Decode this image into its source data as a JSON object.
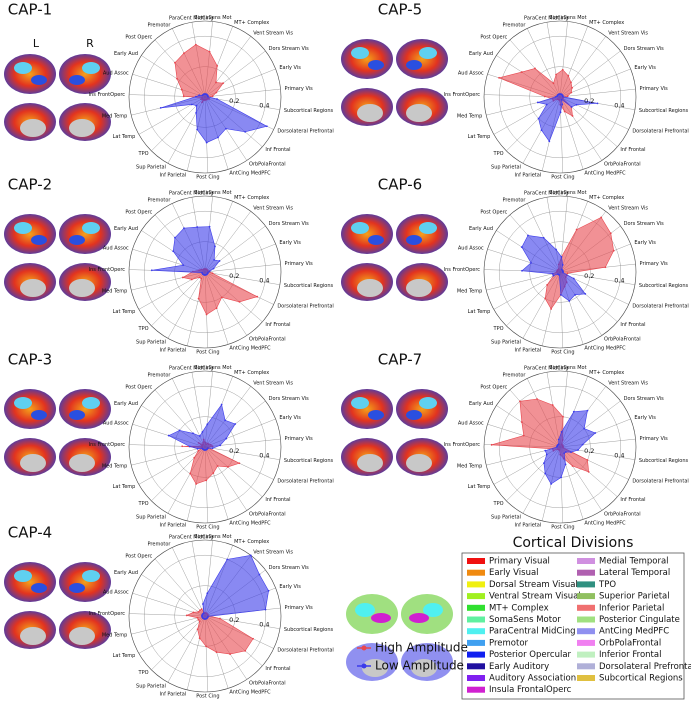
{
  "chart_data": [
    {
      "type": "radar",
      "title": "CAP-1",
      "categories": [
        "Primary Vis",
        "Early Vis",
        "Dors Stream Vis",
        "Vent Stream Vis",
        "MT+ Complex",
        "SomaSens Mot",
        "ParaCent MidCing",
        "Premotor",
        "Post Operc",
        "Early Aud",
        "Aud Assoc",
        "Ins FrontOperc",
        "Med Temp",
        "Lat Temp",
        "TPO",
        "Sup Parietal",
        "Inf Parietal",
        "Post Cing",
        "AntCing MedPFC",
        "OrbPolaFrontal",
        "Inf Frontal",
        "Dorsolateral Prefrontal",
        "Subcortical Regions"
      ],
      "series": [
        {
          "name": "High Amplitude",
          "color": "#e8474f",
          "values": [
            0.05,
            0.08,
            0.15,
            0.12,
            0.22,
            0.3,
            0.35,
            0.32,
            0.3,
            0.22,
            0.16,
            0.14,
            0.02,
            0.03,
            0.02,
            0.04,
            0.02,
            0.02,
            0.02,
            0.02,
            0.02,
            0.03,
            0.02
          ]
        },
        {
          "name": "Low Amplitude",
          "color": "#3b3bea",
          "values": [
            0.02,
            0.02,
            0.02,
            0.02,
            0.02,
            0.02,
            0.02,
            0.02,
            0.02,
            0.02,
            0.04,
            0.06,
            0.3,
            0.1,
            0.08,
            0.12,
            0.22,
            0.3,
            0.28,
            0.25,
            0.35,
            0.45,
            0.08
          ]
        }
      ],
      "rlim": [
        0,
        0.5
      ],
      "rticks": [
        0.2,
        0.4
      ]
    },
    {
      "type": "radar",
      "title": "CAP-2",
      "categories": [
        "Primary Vis",
        "Early Vis",
        "Dors Stream Vis",
        "Vent Stream Vis",
        "MT+ Complex",
        "SomaSens Mot",
        "ParaCent MidCing",
        "Premotor",
        "Post Operc",
        "Early Aud",
        "Aud Assoc",
        "Ins FrontOperc",
        "Med Temp",
        "Lat Temp",
        "TPO",
        "Sup Parietal",
        "Inf Parietal",
        "Post Cing",
        "AntCing MedPFC",
        "OrbPolaFrontal",
        "Inf Frontal",
        "Dorsolateral Prefrontal",
        "Subcortical Regions"
      ],
      "series": [
        {
          "name": "High Amplitude",
          "color": "#e8474f",
          "values": [
            0.03,
            0.02,
            0.02,
            0.02,
            0.02,
            0.02,
            0.02,
            0.02,
            0.02,
            0.03,
            0.04,
            0.08,
            0.15,
            0.1,
            0.05,
            0.05,
            0.18,
            0.28,
            0.25,
            0.2,
            0.3,
            0.38,
            0.05
          ]
        },
        {
          "name": "Low Amplitude",
          "color": "#3b3bea",
          "values": [
            0.03,
            0.06,
            0.12,
            0.1,
            0.18,
            0.3,
            0.3,
            0.32,
            0.3,
            0.25,
            0.15,
            0.35,
            0.02,
            0.02,
            0.02,
            0.02,
            0.02,
            0.02,
            0.02,
            0.02,
            0.02,
            0.02,
            0.02
          ]
        }
      ],
      "rlim": [
        0,
        0.5
      ],
      "rticks": [
        0.2,
        0.4
      ]
    },
    {
      "type": "radar",
      "title": "CAP-3",
      "categories": [
        "Primary Vis",
        "Early Vis",
        "Dors Stream Vis",
        "Vent Stream Vis",
        "MT+ Complex",
        "SomaSens Mot",
        "ParaCent MidCing",
        "Premotor",
        "Post Operc",
        "Early Aud",
        "Aud Assoc",
        "Ins FrontOperc",
        "Med Temp",
        "Lat Temp",
        "TPO",
        "Sup Parietal",
        "Inf Parietal",
        "Post Cing",
        "AntCing MedPFC",
        "OrbPolaFrontal",
        "Inf Frontal",
        "Dorsolateral Prefrontal",
        "Subcortical Regions"
      ],
      "series": [
        {
          "name": "High Amplitude",
          "color": "#e8474f",
          "values": [
            0.05,
            0.04,
            0.03,
            0.03,
            0.02,
            0.03,
            0.05,
            0.03,
            0.02,
            0.05,
            0.02,
            0.15,
            0.02,
            0.05,
            0.1,
            0.2,
            0.25,
            0.22,
            0.18,
            0.15,
            0.2,
            0.25,
            0.02
          ]
        },
        {
          "name": "Low Amplitude",
          "color": "#3b3bea",
          "values": [
            0.1,
            0.15,
            0.25,
            0.22,
            0.3,
            0.15,
            0.1,
            0.08,
            0.12,
            0.2,
            0.25,
            0.1,
            0.05,
            0.02,
            0.02,
            0.02,
            0.02,
            0.02,
            0.02,
            0.02,
            0.02,
            0.02,
            0.05
          ]
        }
      ],
      "rlim": [
        0,
        0.5
      ],
      "rticks": [
        0.2,
        0.4
      ]
    },
    {
      "type": "radar",
      "title": "CAP-4",
      "categories": [
        "Primary Vis",
        "Early Vis",
        "Dors Stream Vis",
        "Vent Stream Vis",
        "MT+ Complex",
        "SomaSens Mot",
        "ParaCent MidCing",
        "Premotor",
        "Post Operc",
        "Early Aud",
        "Aud Assoc",
        "Ins FrontOperc",
        "Med Temp",
        "Lat Temp",
        "TPO",
        "Sup Parietal",
        "Inf Parietal",
        "Post Cing",
        "AntCing MedPFC",
        "OrbPolaFrontal",
        "Inf Frontal",
        "Dorsolateral Prefrontal",
        "Subcortical Regions"
      ],
      "series": [
        {
          "name": "High Amplitude",
          "color": "#e8474f",
          "values": [
            0.02,
            0.02,
            0.02,
            0.02,
            0.02,
            0.02,
            0.02,
            0.05,
            0.05,
            0.05,
            0.08,
            0.12,
            0.05,
            0.05,
            0.05,
            0.1,
            0.15,
            0.2,
            0.25,
            0.3,
            0.35,
            0.35,
            0.1
          ]
        },
        {
          "name": "Low Amplitude",
          "color": "#3b3bea",
          "values": [
            0.4,
            0.45,
            0.45,
            0.5,
            0.4,
            0.15,
            0.08,
            0.02,
            0.02,
            0.02,
            0.02,
            0.02,
            0.02,
            0.02,
            0.02,
            0.02,
            0.02,
            0.02,
            0.02,
            0.02,
            0.02,
            0.02,
            0.02
          ]
        }
      ],
      "rlim": [
        0,
        0.5
      ],
      "rticks": [
        0.2,
        0.4
      ]
    },
    {
      "type": "radar",
      "title": "CAP-5",
      "categories": [
        "Primary Vis",
        "Early Vis",
        "Dors Stream Vis",
        "Vent Stream Vis",
        "MT+ Complex",
        "SomaSens Mot",
        "ParaCent MidCing",
        "Premotor",
        "Post Operc",
        "Early Aud",
        "Aud Assoc",
        "Ins FrontOperc",
        "Med Temp",
        "Lat Temp",
        "TPO",
        "Sup Parietal",
        "Inf Parietal",
        "Post Cing",
        "AntCing MedPFC",
        "OrbPolaFrontal",
        "Inf Frontal",
        "Dorsolateral Prefrontal",
        "Subcortical Regions"
      ],
      "series": [
        {
          "name": "High Amplitude",
          "color": "#e8474f",
          "values": [
            0.05,
            0.08,
            0.1,
            0.12,
            0.15,
            0.18,
            0.15,
            0.1,
            0.25,
            0.3,
            0.42,
            0.1,
            0.05,
            0.05,
            0.02,
            0.02,
            0.02,
            0.05,
            0.1,
            0.15,
            0.1,
            0.02,
            0.02
          ]
        },
        {
          "name": "Low Amplitude",
          "color": "#3b3bea",
          "values": [
            0.02,
            0.02,
            0.02,
            0.02,
            0.02,
            0.02,
            0.02,
            0.02,
            0.02,
            0.02,
            0.02,
            0.03,
            0.15,
            0.1,
            0.2,
            0.25,
            0.3,
            0.1,
            0.05,
            0.02,
            0.1,
            0.12,
            0.25
          ]
        }
      ],
      "rlim": [
        0,
        0.5
      ],
      "rticks": [
        0.2,
        0.4
      ]
    },
    {
      "type": "radar",
      "title": "CAP-6",
      "categories": [
        "Primary Vis",
        "Early Vis",
        "Dors Stream Vis",
        "Vent Stream Vis",
        "MT+ Complex",
        "SomaSens Mot",
        "ParaCent MidCing",
        "Premotor",
        "Post Operc",
        "Early Aud",
        "Aud Assoc",
        "Ins FrontOperc",
        "Med Temp",
        "Lat Temp",
        "TPO",
        "Sup Parietal",
        "Inf Parietal",
        "Post Cing",
        "AntCing MedPFC",
        "OrbPolaFrontal",
        "Inf Frontal",
        "Dorsolateral Prefrontal",
        "Subcortical Regions"
      ],
      "series": [
        {
          "name": "High Amplitude",
          "color": "#e8474f",
          "values": [
            0.3,
            0.38,
            0.42,
            0.45,
            0.3,
            0.1,
            0.05,
            0.02,
            0.02,
            0.02,
            0.02,
            0.02,
            0.05,
            0.05,
            0.12,
            0.2,
            0.25,
            0.15,
            0.1,
            0.08,
            0.05,
            0.05,
            0.05
          ]
        },
        {
          "name": "Low Amplitude",
          "color": "#3b3bea",
          "values": [
            0.02,
            0.02,
            0.02,
            0.02,
            0.05,
            0.1,
            0.15,
            0.25,
            0.32,
            0.3,
            0.2,
            0.25,
            0.05,
            0.05,
            0.02,
            0.02,
            0.02,
            0.15,
            0.2,
            0.18,
            0.22,
            0.1,
            0.02
          ]
        }
      ],
      "rlim": [
        0,
        0.5
      ],
      "rticks": [
        0.2,
        0.4
      ]
    },
    {
      "type": "radar",
      "title": "CAP-7",
      "categories": [
        "Primary Vis",
        "Early Vis",
        "Dors Stream Vis",
        "Vent Stream Vis",
        "MT+ Complex",
        "SomaSens Mot",
        "ParaCent MidCing",
        "Premotor",
        "Post Operc",
        "Early Aud",
        "Aud Assoc",
        "Ins FrontOperc",
        "Med Temp",
        "Lat Temp",
        "TPO",
        "Sup Parietal",
        "Inf Parietal",
        "Post Cing",
        "AntCing MedPFC",
        "OrbPolaFrontal",
        "Inf Frontal",
        "Dorsolateral Prefrontal",
        "Subcortical Regions"
      ],
      "series": [
        {
          "name": "High Amplitude",
          "color": "#e8474f",
          "values": [
            0.02,
            0.02,
            0.02,
            0.02,
            0.05,
            0.2,
            0.28,
            0.35,
            0.4,
            0.3,
            0.25,
            0.45,
            0.05,
            0.05,
            0.02,
            0.02,
            0.02,
            0.05,
            0.08,
            0.15,
            0.25,
            0.2,
            0.02
          ]
        },
        {
          "name": "Low Amplitude",
          "color": "#3b3bea",
          "values": [
            0.15,
            0.25,
            0.2,
            0.3,
            0.25,
            0.1,
            0.05,
            0.02,
            0.02,
            0.02,
            0.02,
            0.02,
            0.1,
            0.1,
            0.15,
            0.2,
            0.25,
            0.2,
            0.12,
            0.05,
            0.05,
            0.08,
            0.12
          ]
        }
      ],
      "rlim": [
        0,
        0.5
      ],
      "rticks": [
        0.2,
        0.4
      ]
    }
  ],
  "hemisphere_labels": [
    "L",
    "R"
  ],
  "cortical_divisions": {
    "title": "Cortical Divisions",
    "items": [
      {
        "label": "Primary Visual",
        "color": "#f01010"
      },
      {
        "label": "Early Visual",
        "color": "#f08a10"
      },
      {
        "label": "Dorsal Stream Visual",
        "color": "#f0f010"
      },
      {
        "label": "Ventral Stream Visual",
        "color": "#a0f020"
      },
      {
        "label": "MT+ Complex",
        "color": "#30e030"
      },
      {
        "label": "SomaSens Motor",
        "color": "#60f0a0"
      },
      {
        "label": "ParaCentral MidCing",
        "color": "#50f0f0"
      },
      {
        "label": "Premotor",
        "color": "#40a0f0"
      },
      {
        "label": "Posterior Opercular",
        "color": "#1020f0"
      },
      {
        "label": "Early Auditory",
        "color": "#2010a0"
      },
      {
        "label": "Auditory Association",
        "color": "#8020f0"
      },
      {
        "label": "Insula FrontalOperc",
        "color": "#d020d0"
      },
      {
        "label": "Medial Temporal",
        "color": "#d090e0"
      },
      {
        "label": "Lateral Temporal",
        "color": "#b060b0"
      },
      {
        "label": "TPO",
        "color": "#309080"
      },
      {
        "label": "Superior Parietal",
        "color": "#90c060"
      },
      {
        "label": "Inferior Parietal",
        "color": "#f07070"
      },
      {
        "label": "Posterior Cingulate",
        "color": "#a0e080"
      },
      {
        "label": "AntCing MedPFC",
        "color": "#9090f0"
      },
      {
        "label": "OrbPolaFrontal",
        "color": "#f080f0"
      },
      {
        "label": "Inferior Frontal",
        "color": "#c0f0c0"
      },
      {
        "label": "Dorsolateral Prefrontal",
        "color": "#b0b0d8"
      },
      {
        "label": "Subcortical Regions",
        "color": "#e0c040"
      }
    ]
  }
}
